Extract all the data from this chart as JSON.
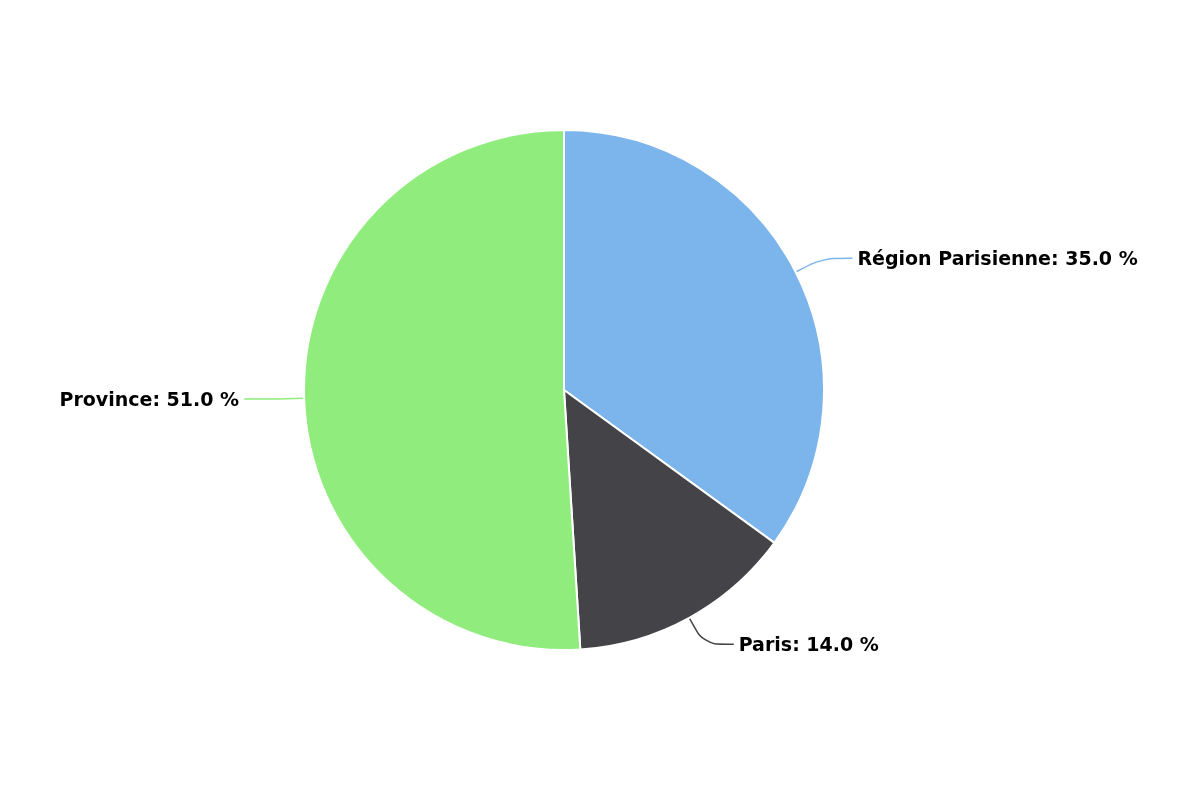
{
  "chart_data": {
    "type": "pie",
    "categories": [
      "Région Parisienne",
      "Paris",
      "Province"
    ],
    "values": [
      35,
      14,
      51
    ],
    "colors": [
      "#7cb5ec",
      "#434348",
      "#90ed7d"
    ],
    "value_labels": [
      "35.0 %",
      "14.0 %",
      "51.0 %"
    ],
    "legend": false
  }
}
